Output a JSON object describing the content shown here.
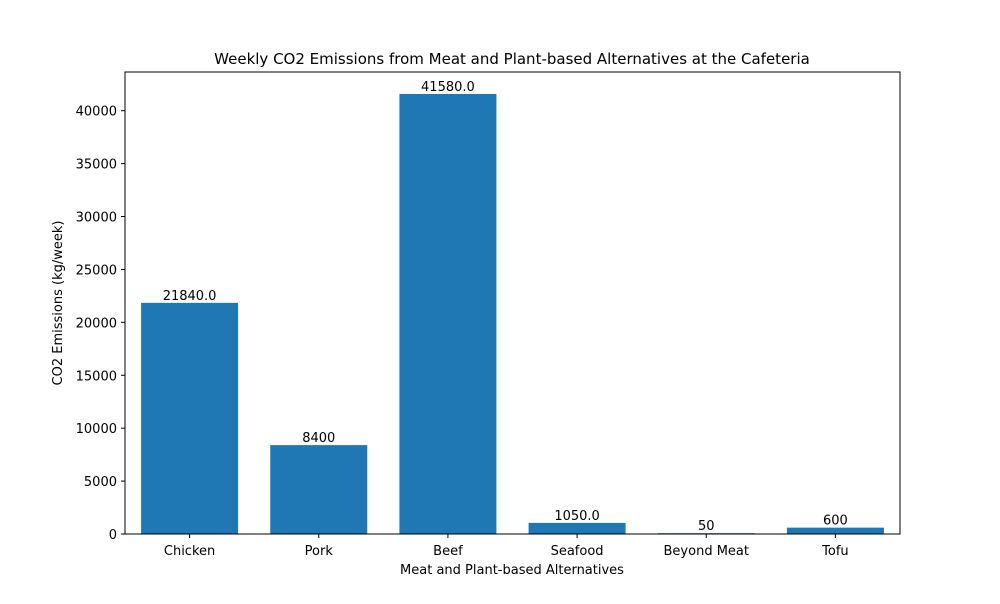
{
  "chart_data": {
    "type": "bar",
    "title": "Weekly CO2 Emissions from Meat and Plant-based Alternatives at the Cafeteria",
    "xlabel": "Meat and Plant-based Alternatives",
    "ylabel": "CO2 Emissions (kg/week)",
    "categories": [
      "Chicken",
      "Pork",
      "Beef",
      "Seafood",
      "Beyond Meat",
      "Tofu"
    ],
    "values": [
      21840.0,
      8400,
      41580.0,
      1050.0,
      50,
      600
    ],
    "value_labels": [
      "21840.0",
      "8400",
      "41580.0",
      "1050.0",
      "50",
      "600"
    ],
    "ylim": [
      0,
      43656
    ],
    "yticks": [
      0,
      5000,
      10000,
      15000,
      20000,
      25000,
      30000,
      35000,
      40000
    ],
    "ytick_labels": [
      "0",
      "5000",
      "10000",
      "15000",
      "20000",
      "25000",
      "30000",
      "35000",
      "40000"
    ],
    "bar_color": "#1f77b4",
    "grid": false,
    "legend": "none"
  }
}
